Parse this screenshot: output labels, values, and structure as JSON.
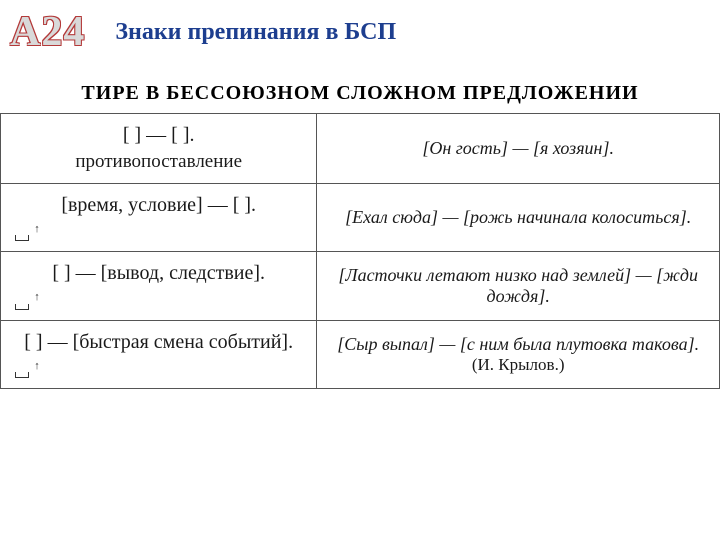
{
  "header": {
    "badge": "А24",
    "title": "Знаки препинания  в БСП"
  },
  "section_heading": "ТИРЕ В БЕССОЮЗНОМ СЛОЖНОМ ПРЕДЛОЖЕНИИ",
  "rows": [
    {
      "pattern": "[   ] — [   ].",
      "label": "противопоставление",
      "example": "[Он гость] — [я хозяин]."
    },
    {
      "pattern": "[время, условие] — [   ].",
      "label": "",
      "example": "[Ехал сюда] — [рожь начинала колоситься]."
    },
    {
      "pattern": "[   ] — [вывод, следствие].",
      "label": "",
      "example": "[Ласточки летают низко над землей] — [жди дождя]."
    },
    {
      "pattern": "[ ] — [быстрая смена событий].",
      "label": "",
      "example": "[Сыр выпал] — [с ним была плутовка такова].",
      "source": "(И. Крылов.)"
    }
  ],
  "colors": {
    "title_color": "#1d3e8f",
    "badge_outline": "#b33939",
    "badge_fill": "#d9d9d9",
    "border_color": "#555555",
    "text_color": "#1a1a1a",
    "background": "#ffffff"
  },
  "typography": {
    "badge_fontsize": 42,
    "title_fontsize": 24,
    "heading_fontsize": 20,
    "cell_fontsize": 18,
    "pattern_fontsize": 20
  }
}
